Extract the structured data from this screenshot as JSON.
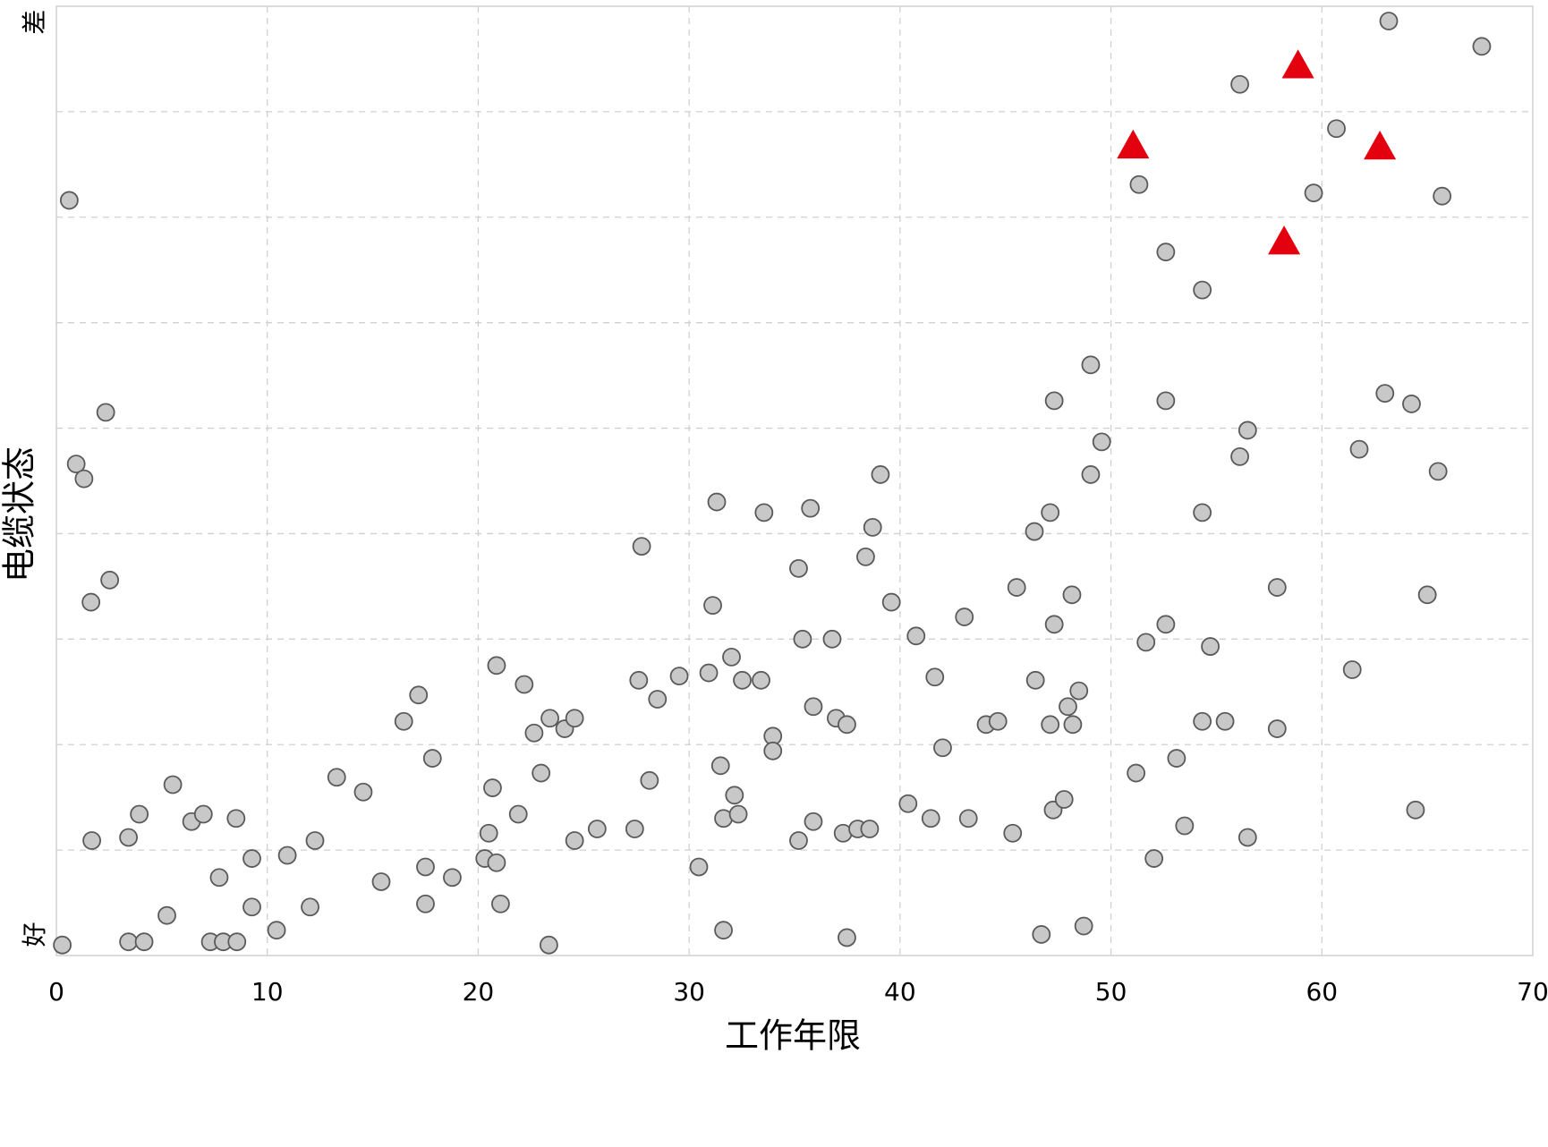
{
  "chart_data": {
    "type": "scatter",
    "xlabel": "工作年限",
    "ylabel": "电缆状态",
    "xlim": [
      0,
      70
    ],
    "xticks": [
      0,
      10,
      20,
      30,
      40,
      50,
      60,
      70
    ],
    "ylim": [
      0,
      9
    ],
    "yticks": [
      {
        "value": 0.2,
        "label": "好"
      },
      {
        "value": 8.85,
        "label": "差"
      }
    ],
    "ygrid": [
      1,
      2,
      3,
      4,
      5,
      6,
      7,
      8
    ],
    "grid": true,
    "series": [
      {
        "marker": "circle",
        "color": "#c8c8c8",
        "x": [
          0.61,
          0.94,
          1.31,
          2.34,
          2.53,
          1.64,
          1.68,
          0.28,
          3.42,
          4.16,
          3.42,
          3.93,
          5.52,
          5.24,
          6.41,
          6.97,
          7.3,
          7.91,
          8.56,
          7.72,
          8.52,
          9.27,
          9.27,
          10.44,
          10.95,
          12.03,
          12.26,
          13.29,
          14.55,
          15.4,
          16.47,
          17.17,
          17.5,
          17.5,
          17.83,
          18.77,
          20.31,
          20.5,
          20.68,
          20.87,
          20.87,
          21.06,
          21.9,
          22.18,
          22.65,
          22.98,
          23.35,
          23.4,
          24.1,
          24.57,
          24.57,
          25.64,
          27.42,
          27.61,
          27.75,
          28.12,
          28.5,
          29.53,
          30.46,
          30.93,
          31.12,
          31.31,
          31.49,
          31.63,
          31.63,
          32.01,
          32.15,
          32.33,
          32.52,
          33.41,
          33.55,
          33.97,
          33.97,
          35.19,
          35.19,
          35.38,
          35.75,
          35.89,
          35.89,
          36.78,
          36.97,
          37.3,
          37.48,
          37.48,
          37.99,
          38.37,
          38.56,
          38.7,
          39.07,
          39.59,
          40.38,
          40.76,
          41.46,
          41.65,
          42.02,
          43.05,
          43.24,
          44.08,
          44.64,
          45.34,
          45.53,
          46.37,
          46.42,
          46.7,
          47.12,
          47.12,
          47.26,
          47.31,
          47.31,
          47.78,
          47.96,
          48.15,
          48.19,
          48.48,
          48.71,
          49.04,
          49.04,
          49.56,
          51.19,
          51.33,
          51.66,
          52.04,
          52.6,
          52.6,
          52.6,
          53.11,
          53.49,
          54.33,
          54.33,
          54.33,
          54.71,
          55.41,
          56.11,
          56.11,
          56.48,
          56.48,
          57.88,
          57.88,
          59.61,
          60.69,
          61.44,
          61.77,
          62.99,
          63.17,
          64.25,
          64.44,
          65.0,
          65.51,
          65.7,
          67.58
        ],
        "y": [
          7.16,
          4.66,
          4.52,
          5.15,
          3.56,
          3.35,
          1.09,
          0.1,
          0.13,
          0.13,
          1.12,
          1.34,
          1.62,
          0.38,
          1.27,
          1.34,
          0.13,
          0.13,
          0.13,
          0.74,
          1.3,
          0.92,
          0.46,
          0.24,
          0.95,
          0.46,
          1.09,
          1.69,
          1.55,
          0.7,
          2.22,
          2.47,
          0.84,
          0.49,
          1.87,
          0.74,
          0.92,
          1.16,
          1.59,
          2.75,
          0.88,
          0.49,
          1.34,
          2.57,
          2.11,
          1.73,
          0.1,
          2.25,
          2.15,
          2.25,
          1.09,
          1.2,
          1.2,
          2.61,
          3.88,
          1.66,
          2.43,
          2.65,
          0.84,
          2.68,
          3.32,
          4.3,
          1.8,
          1.3,
          0.24,
          2.83,
          1.52,
          1.34,
          2.61,
          2.61,
          4.2,
          2.08,
          1.94,
          3.67,
          1.09,
          3.0,
          4.24,
          2.36,
          1.27,
          3.0,
          2.25,
          1.16,
          2.19,
          0.17,
          1.2,
          3.78,
          1.2,
          4.06,
          4.56,
          3.35,
          1.44,
          3.03,
          1.3,
          2.64,
          1.97,
          3.21,
          1.3,
          2.19,
          2.22,
          1.16,
          3.49,
          4.02,
          2.61,
          0.2,
          4.2,
          2.19,
          1.38,
          3.14,
          5.26,
          1.48,
          2.36,
          3.42,
          2.19,
          2.51,
          0.28,
          5.6,
          4.56,
          4.87,
          1.73,
          7.31,
          2.97,
          0.92,
          6.67,
          5.26,
          3.14,
          1.87,
          1.23,
          6.31,
          4.2,
          2.22,
          2.93,
          2.22,
          8.26,
          4.73,
          4.98,
          1.12,
          2.15,
          3.49,
          7.23,
          7.84,
          2.71,
          4.8,
          5.33,
          8.86,
          5.23,
          1.38,
          3.42,
          4.59,
          7.2,
          8.62
        ]
      },
      {
        "marker": "triangle",
        "color": "#e3000f",
        "x": [
          51.05,
          58.87,
          62.75,
          58.21
        ],
        "y": [
          7.67,
          8.43,
          7.66,
          6.76
        ]
      }
    ]
  }
}
